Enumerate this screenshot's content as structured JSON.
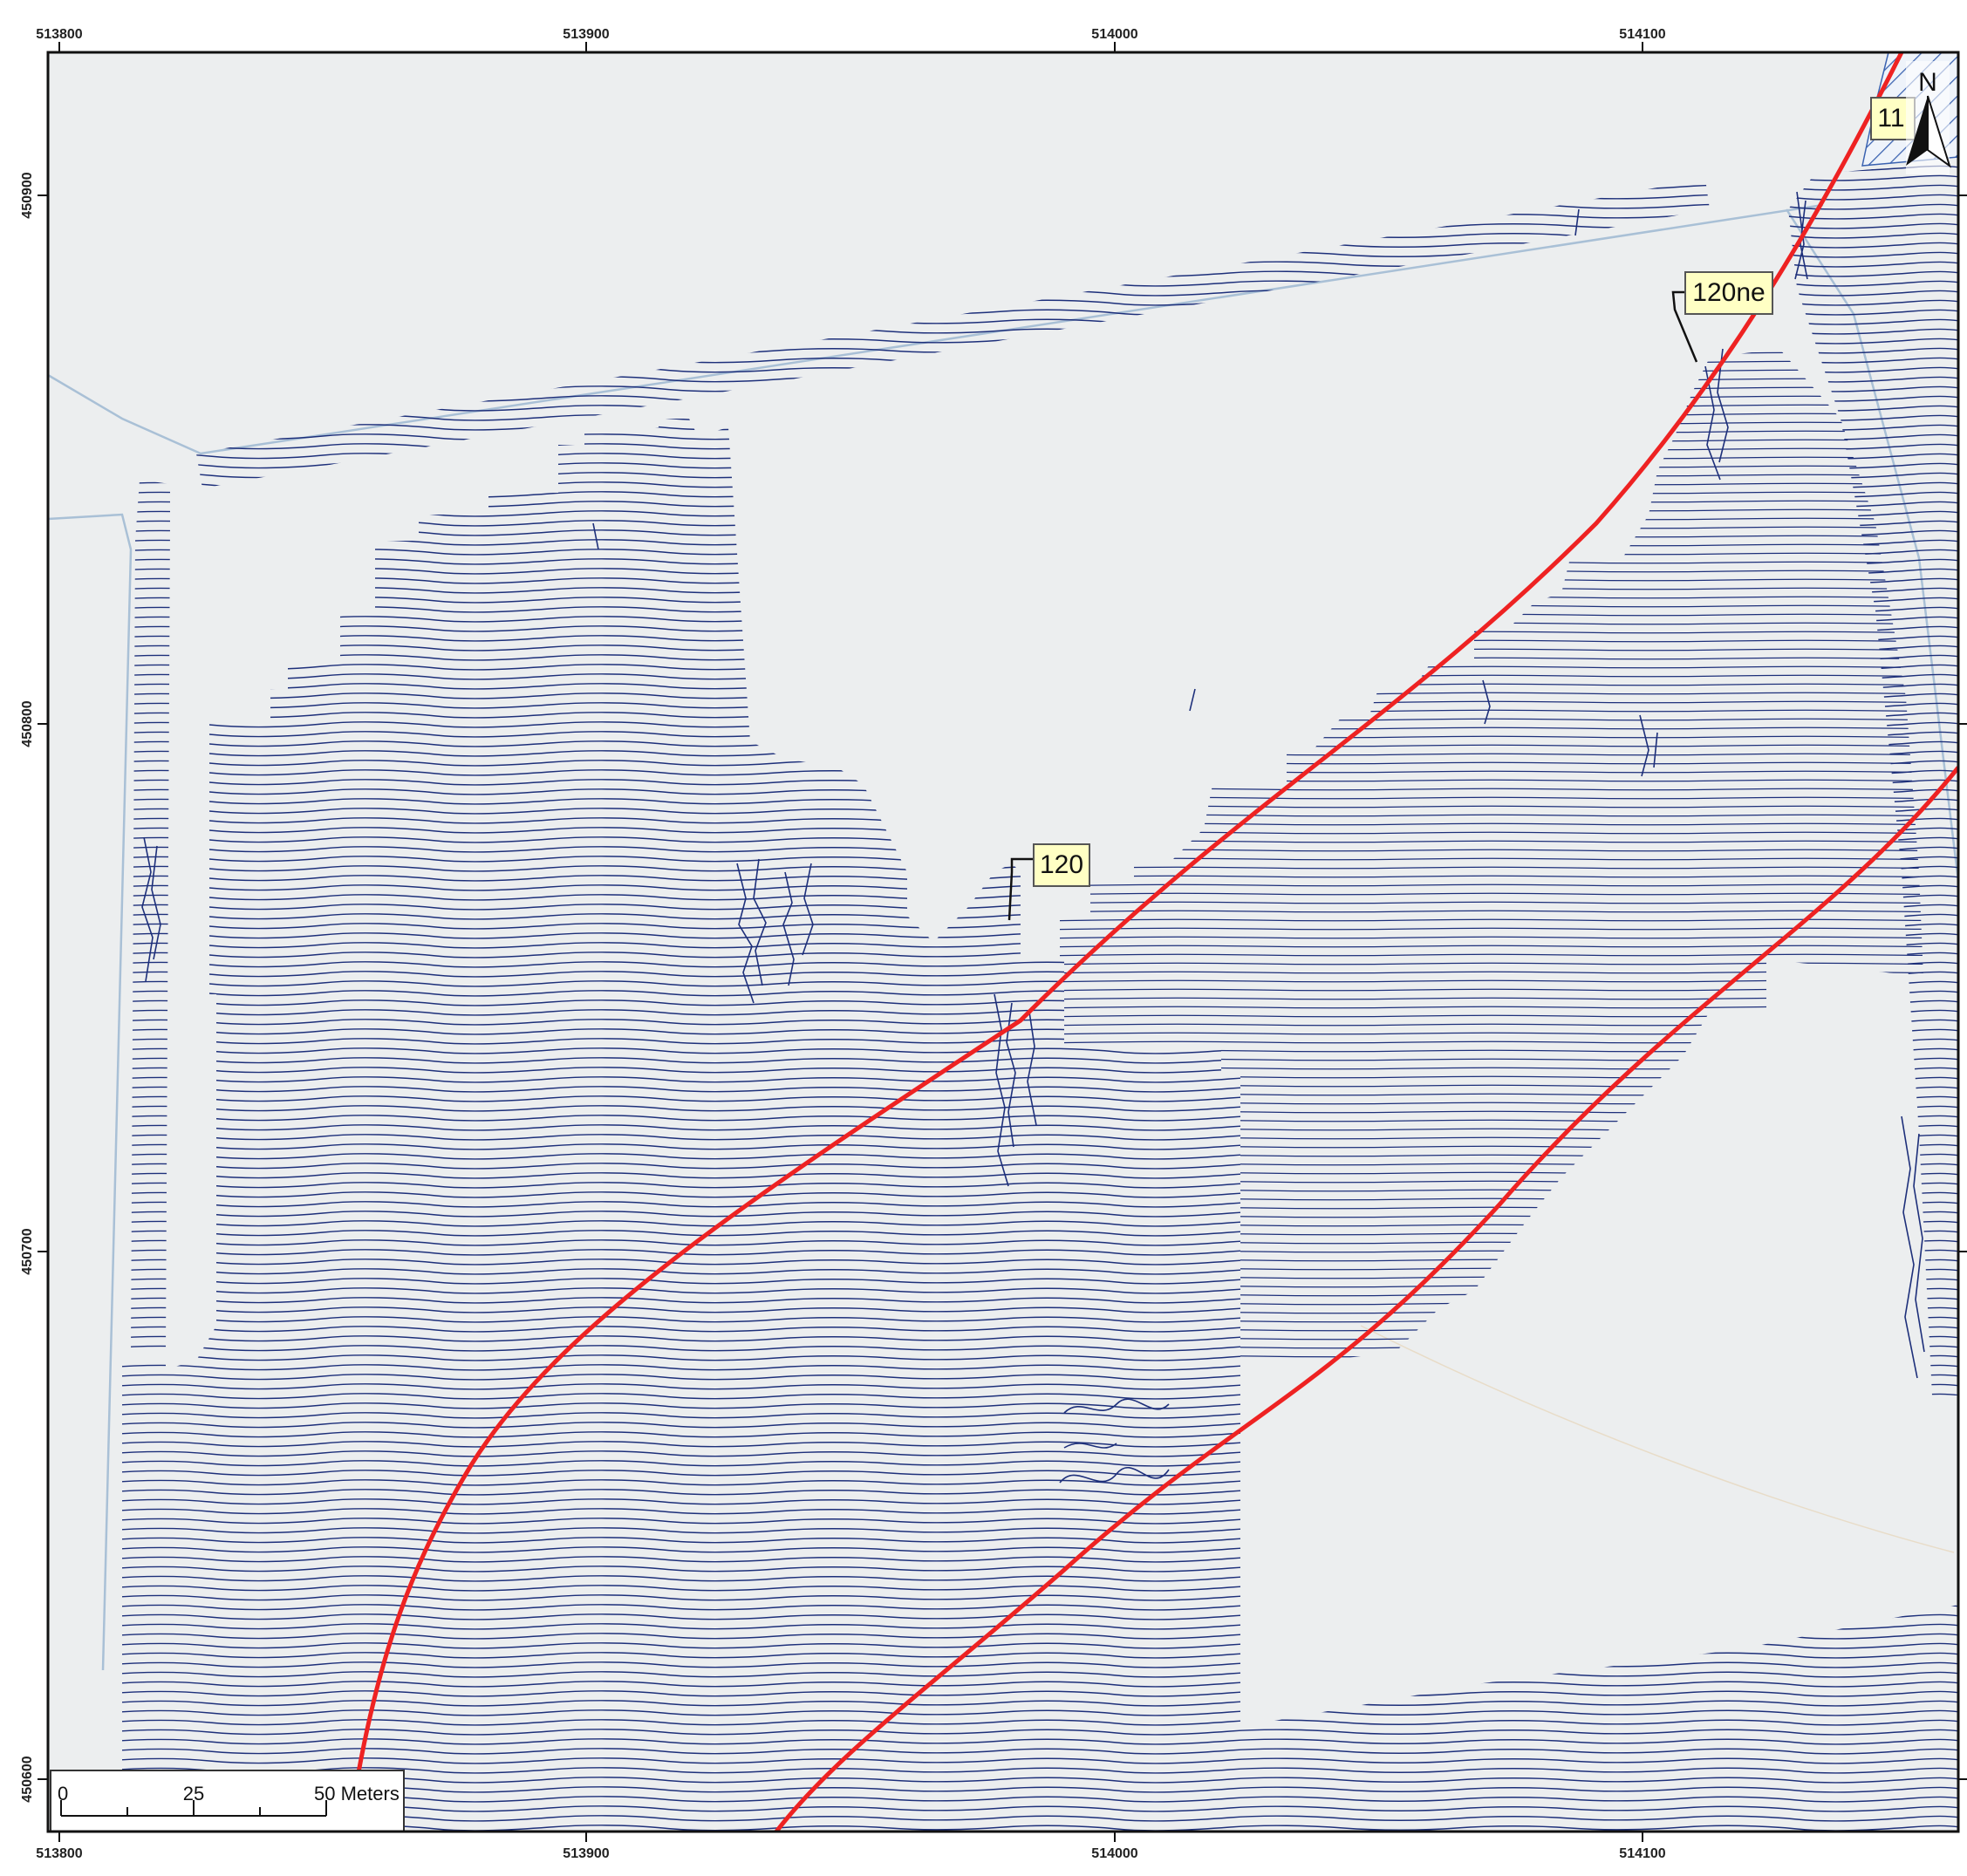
{
  "map": {
    "grid": {
      "x_ticks": [
        "513800",
        "513900",
        "514000",
        "514100"
      ],
      "y_ticks": [
        "450900",
        "450800",
        "450700",
        "450600"
      ]
    },
    "labels": {
      "anomaly_120": "120",
      "anomaly_120ne": "120ne",
      "anomaly_11": "11"
    },
    "north_arrow": {
      "letter": "N",
      "icon": "north-arrow-icon"
    },
    "scale_bar": {
      "tick_0": "0",
      "tick_25": "25",
      "tick_50": "50 Meters"
    },
    "colors": {
      "background": "#eceeef",
      "trace": "#1d2f7a",
      "trace_fill": "#3a56a6",
      "fault_line": "#ee2222",
      "road": "#a9c0d6",
      "label_fill": "#ffffc4",
      "frame": "#111111"
    }
  }
}
